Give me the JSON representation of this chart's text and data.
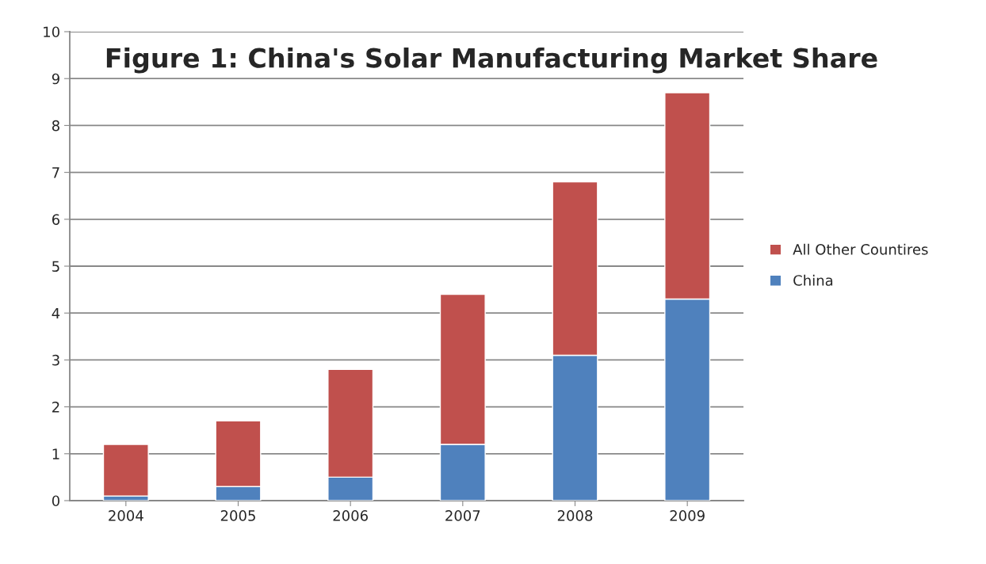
{
  "chart_data": {
    "type": "bar",
    "title": "Figure 1: China's Solar Manufacturing Market Share",
    "categories": [
      "2004",
      "2005",
      "2006",
      "2007",
      "2008",
      "2009"
    ],
    "series": [
      {
        "name": "China",
        "color": "#4f81bd",
        "values": [
          0.1,
          0.3,
          0.5,
          1.2,
          3.1,
          4.3
        ]
      },
      {
        "name": "All Other Countires",
        "color": "#c0504d",
        "values": [
          1.1,
          1.4,
          2.3,
          3.2,
          3.7,
          4.4
        ]
      }
    ],
    "stacked": true,
    "ylim": [
      0,
      10
    ],
    "yticks": [
      0,
      1,
      2,
      3,
      4,
      5,
      6,
      7,
      8,
      9,
      10
    ],
    "grid": "y",
    "legend": "right"
  }
}
